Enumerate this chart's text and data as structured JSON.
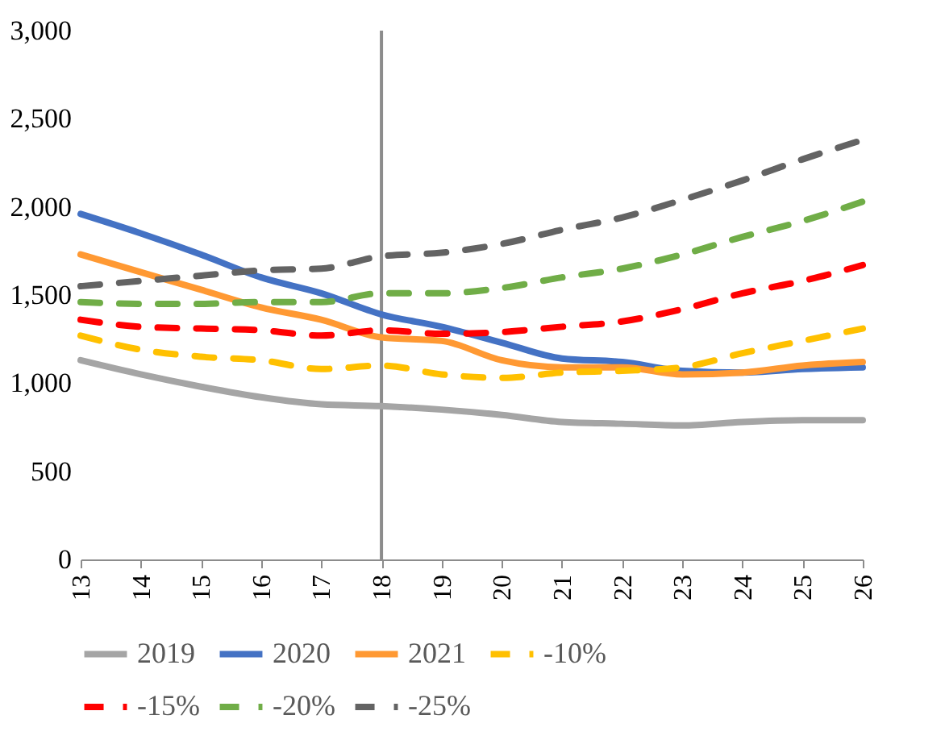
{
  "chart_data": {
    "type": "line",
    "x": [
      13,
      14,
      15,
      16,
      17,
      18,
      19,
      20,
      21,
      22,
      23,
      24,
      25,
      26
    ],
    "xlim": [
      13,
      26
    ],
    "xticks": [
      13,
      14,
      15,
      16,
      17,
      18,
      19,
      20,
      21,
      22,
      23,
      24,
      25,
      26
    ],
    "ylim": [
      0,
      3000
    ],
    "yticks": [
      {
        "value": 0,
        "label": "0"
      },
      {
        "value": 500,
        "label": "500"
      },
      {
        "value": 1000,
        "label": "1,000"
      },
      {
        "value": 1500,
        "label": "1,500"
      },
      {
        "value": 2000,
        "label": "2,000"
      },
      {
        "value": 2500,
        "label": "2,500"
      },
      {
        "value": 3000,
        "label": "3,000"
      }
    ],
    "grid": false,
    "legend": "bottom",
    "ref_lines": [
      {
        "axis": "x",
        "value": 18,
        "color": "#8c8c8c"
      }
    ],
    "series": [
      {
        "name": "2019",
        "color": "#a5a5a5",
        "line_style": "solid",
        "values": [
          1130,
          1050,
          980,
          920,
          880,
          870,
          850,
          820,
          780,
          770,
          760,
          780,
          790,
          790
        ]
      },
      {
        "name": "2020",
        "color": "#4472c4",
        "line_style": "solid",
        "values": [
          1960,
          1850,
          1730,
          1600,
          1510,
          1390,
          1320,
          1230,
          1140,
          1120,
          1070,
          1060,
          1080,
          1090
        ]
      },
      {
        "name": "2021",
        "color": "#ff9933",
        "line_style": "solid",
        "values": [
          1730,
          1630,
          1530,
          1430,
          1360,
          1260,
          1240,
          1130,
          1090,
          1090,
          1050,
          1060,
          1100,
          1120
        ]
      },
      {
        "name": "-10%",
        "color": "#ffc000",
        "line_style": "dashed",
        "values": [
          1270,
          1190,
          1150,
          1130,
          1080,
          1100,
          1050,
          1030,
          1060,
          1070,
          1090,
          1170,
          1240,
          1310
        ]
      },
      {
        "name": "-15%",
        "color": "#ff0000",
        "line_style": "dashed",
        "values": [
          1360,
          1320,
          1310,
          1300,
          1270,
          1300,
          1280,
          1290,
          1320,
          1350,
          1420,
          1510,
          1580,
          1670
        ]
      },
      {
        "name": "-20%",
        "color": "#70ad47",
        "line_style": "dashed",
        "values": [
          1460,
          1450,
          1450,
          1460,
          1460,
          1510,
          1510,
          1540,
          1600,
          1650,
          1730,
          1830,
          1920,
          2030
        ]
      },
      {
        "name": "-25%",
        "color": "#636363",
        "line_style": "dashed",
        "values": [
          1550,
          1580,
          1610,
          1640,
          1650,
          1720,
          1740,
          1790,
          1870,
          1940,
          2040,
          2150,
          2270,
          2380
        ]
      }
    ]
  }
}
